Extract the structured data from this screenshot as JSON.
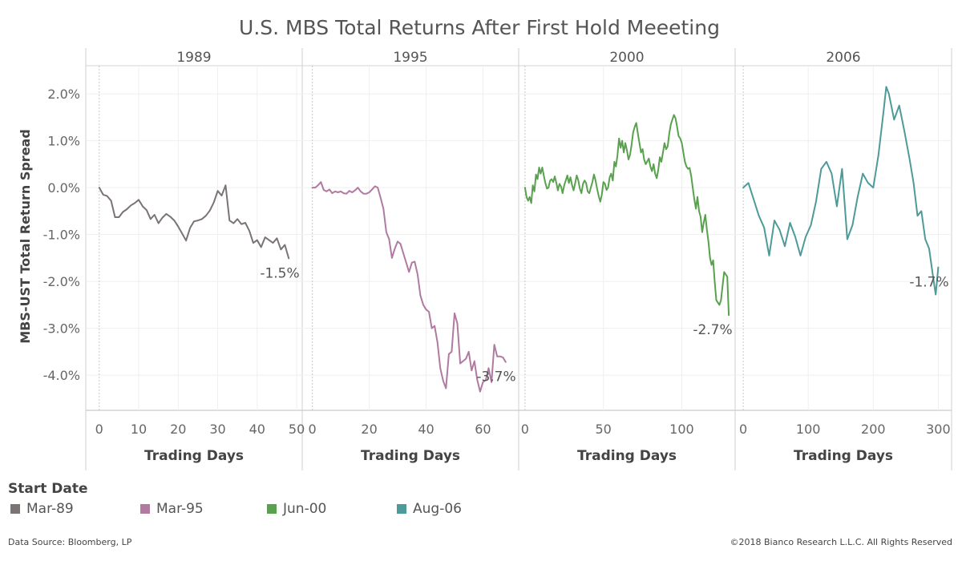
{
  "chart_data": {
    "type": "line",
    "title": "U.S. MBS Total Returns After First Hold Meeeting",
    "ylabel": "MBS-UST Total Return Spread",
    "xlabel": "Trading Days",
    "ylim": [
      -4.75,
      2.6
    ],
    "yticks": [
      2,
      1,
      0,
      -1,
      -2,
      -3,
      -4
    ],
    "ytick_labels": [
      "2.0%",
      "1.0%",
      "0.0%",
      "-1.0%",
      "-2.0%",
      "-3.0%",
      "-4.0%"
    ],
    "grid": true,
    "legend_title": "Start Date",
    "legend_position": "bottom",
    "panels": [
      {
        "title": "1989",
        "series_name": "Mar-89",
        "color": "#7a7474",
        "xlim": [
          -3,
          51
        ],
        "xticks": [
          0,
          10,
          20,
          30,
          40,
          50
        ],
        "end_label": "-1.5%",
        "x": [
          0,
          1,
          2,
          3,
          4,
          5,
          6,
          7,
          8,
          9,
          10,
          11,
          12,
          13,
          14,
          15,
          16,
          17,
          18,
          19,
          20,
          21,
          22,
          23,
          24,
          25,
          26,
          27,
          28,
          29,
          30,
          31,
          32,
          33,
          34,
          35,
          36,
          37,
          38,
          39,
          40,
          41,
          42,
          43,
          44,
          45,
          46,
          47,
          48
        ],
        "y": [
          0.0,
          -0.15,
          -0.18,
          -0.28,
          -0.63,
          -0.63,
          -0.52,
          -0.46,
          -0.38,
          -0.33,
          -0.26,
          -0.4,
          -0.48,
          -0.67,
          -0.58,
          -0.76,
          -0.64,
          -0.56,
          -0.62,
          -0.7,
          -0.83,
          -0.98,
          -1.13,
          -0.86,
          -0.72,
          -0.7,
          -0.67,
          -0.6,
          -0.49,
          -0.32,
          -0.07,
          -0.17,
          0.05,
          -0.7,
          -0.76,
          -0.67,
          -0.78,
          -0.75,
          -0.92,
          -1.18,
          -1.12,
          -1.27,
          -1.06,
          -1.12,
          -1.18,
          -1.08,
          -1.32,
          -1.22,
          -1.51
        ]
      },
      {
        "title": "1995",
        "series_name": "Mar-95",
        "color": "#b07aa1",
        "xlim": [
          -3,
          72
        ],
        "xticks": [
          0,
          20,
          40,
          60
        ],
        "end_label": "-3.7%",
        "x": [
          0,
          1,
          2,
          3,
          4,
          5,
          6,
          7,
          8,
          9,
          10,
          11,
          12,
          13,
          14,
          15,
          16,
          17,
          18,
          19,
          20,
          21,
          22,
          23,
          24,
          25,
          26,
          27,
          28,
          29,
          30,
          31,
          32,
          33,
          34,
          35,
          36,
          37,
          38,
          39,
          40,
          41,
          42,
          43,
          44,
          45,
          46,
          47,
          48,
          49,
          50,
          51,
          52,
          53,
          54,
          55,
          56,
          57,
          58,
          59,
          60,
          61,
          62,
          63,
          64,
          65,
          66,
          67,
          68
        ],
        "y": [
          0.0,
          0.0,
          0.05,
          0.12,
          -0.05,
          -0.08,
          -0.04,
          -0.12,
          -0.08,
          -0.1,
          -0.08,
          -0.12,
          -0.13,
          -0.07,
          -0.1,
          -0.06,
          0.0,
          -0.08,
          -0.13,
          -0.13,
          -0.1,
          -0.04,
          0.03,
          0.0,
          -0.22,
          -0.45,
          -0.95,
          -1.1,
          -1.5,
          -1.3,
          -1.15,
          -1.2,
          -1.4,
          -1.6,
          -1.8,
          -1.6,
          -1.58,
          -1.85,
          -2.3,
          -2.5,
          -2.6,
          -2.65,
          -3.0,
          -2.95,
          -3.3,
          -3.85,
          -4.12,
          -4.28,
          -3.55,
          -3.5,
          -2.68,
          -2.9,
          -3.75,
          -3.7,
          -3.65,
          -3.5,
          -3.9,
          -3.7,
          -4.1,
          -4.35,
          -4.15,
          -4.1,
          -3.85,
          -4.15,
          -3.35,
          -3.6,
          -3.6,
          -3.62,
          -3.72
        ]
      },
      {
        "title": "2000",
        "series_name": "Jun-00",
        "color": "#59a14f",
        "xlim": [
          -3,
          133
        ],
        "xticks": [
          0,
          50,
          100
        ],
        "end_label": "-2.7%",
        "x": [
          0,
          1,
          2,
          3,
          4,
          5,
          6,
          7,
          8,
          9,
          10,
          11,
          12,
          13,
          14,
          15,
          16,
          17,
          18,
          19,
          20,
          21,
          22,
          23,
          24,
          25,
          26,
          27,
          28,
          29,
          30,
          31,
          32,
          33,
          34,
          35,
          36,
          37,
          38,
          39,
          40,
          41,
          42,
          43,
          44,
          45,
          46,
          47,
          48,
          49,
          50,
          51,
          52,
          53,
          54,
          55,
          56,
          57,
          58,
          59,
          60,
          61,
          62,
          63,
          64,
          65,
          66,
          67,
          68,
          69,
          70,
          71,
          72,
          73,
          74,
          75,
          76,
          77,
          78,
          79,
          80,
          81,
          82,
          83,
          84,
          85,
          86,
          87,
          88,
          89,
          90,
          91,
          92,
          93,
          94,
          95,
          96,
          97,
          98,
          99,
          100,
          101,
          102,
          103,
          104,
          105,
          106,
          107,
          108,
          109,
          110,
          111,
          112,
          113,
          114,
          115,
          116,
          117,
          118,
          119,
          120,
          121,
          122,
          123,
          124,
          125,
          126,
          127,
          128,
          129,
          130
        ],
        "y": [
          0.0,
          -0.2,
          -0.28,
          -0.2,
          -0.33,
          0.05,
          -0.08,
          0.28,
          0.18,
          0.43,
          0.3,
          0.43,
          0.26,
          0.1,
          -0.02,
          0.0,
          0.15,
          0.18,
          0.12,
          0.24,
          0.1,
          -0.06,
          0.08,
          0.02,
          -0.12,
          0.05,
          0.15,
          0.26,
          0.1,
          0.22,
          0.06,
          -0.06,
          0.1,
          0.26,
          0.15,
          -0.02,
          -0.12,
          0.08,
          0.15,
          0.1,
          -0.08,
          -0.12,
          0.0,
          0.12,
          0.28,
          0.15,
          -0.02,
          -0.18,
          -0.3,
          -0.15,
          0.12,
          0.08,
          -0.05,
          0.0,
          0.22,
          0.3,
          0.15,
          0.55,
          0.45,
          0.7,
          1.05,
          0.85,
          1.0,
          0.75,
          0.95,
          0.8,
          0.6,
          0.7,
          0.92,
          1.18,
          1.3,
          1.38,
          1.15,
          0.95,
          0.75,
          0.82,
          0.6,
          0.5,
          0.56,
          0.62,
          0.45,
          0.35,
          0.5,
          0.3,
          0.2,
          0.38,
          0.65,
          0.55,
          0.75,
          0.95,
          0.82,
          0.88,
          1.15,
          1.35,
          1.45,
          1.55,
          1.48,
          1.3,
          1.1,
          1.05,
          0.95,
          0.75,
          0.55,
          0.45,
          0.4,
          0.42,
          0.25,
          0.0,
          -0.25,
          -0.45,
          -0.2,
          -0.5,
          -0.62,
          -0.95,
          -0.75,
          -0.58,
          -0.9,
          -1.15,
          -1.5,
          -1.65,
          -1.55,
          -2.0,
          -2.4,
          -2.45,
          -2.5,
          -2.4,
          -2.1,
          -1.8,
          -1.85,
          -1.9,
          -2.72
        ]
      },
      {
        "title": "2006",
        "series_name": "Aug-06",
        "color": "#4e9a98",
        "xlim": [
          -10,
          318
        ],
        "xticks": [
          0,
          100,
          200,
          300
        ],
        "end_label": "-1.7%",
        "x": [
          0,
          8,
          16,
          24,
          32,
          40,
          48,
          56,
          64,
          72,
          80,
          88,
          96,
          104,
          112,
          120,
          128,
          136,
          144,
          152,
          160,
          168,
          176,
          184,
          192,
          200,
          208,
          216,
          220,
          224,
          232,
          240,
          248,
          256,
          262,
          268,
          274,
          280,
          286,
          292,
          296,
          300
        ],
        "y": [
          0.0,
          0.1,
          -0.25,
          -0.6,
          -0.85,
          -1.45,
          -0.7,
          -0.9,
          -1.25,
          -0.75,
          -1.05,
          -1.45,
          -1.05,
          -0.8,
          -0.3,
          0.4,
          0.55,
          0.3,
          -0.4,
          0.4,
          -1.1,
          -0.8,
          -0.2,
          0.3,
          0.1,
          0.0,
          0.7,
          1.65,
          2.15,
          2.0,
          1.45,
          1.75,
          1.2,
          0.6,
          0.1,
          -0.6,
          -0.5,
          -1.1,
          -1.3,
          -1.9,
          -2.28,
          -1.7
        ]
      }
    ]
  },
  "footer": {
    "source": "Data Source: Bloomberg, LP",
    "copyright": "©2018 Bianco Research L.L.C.  All Rights Reserved"
  }
}
